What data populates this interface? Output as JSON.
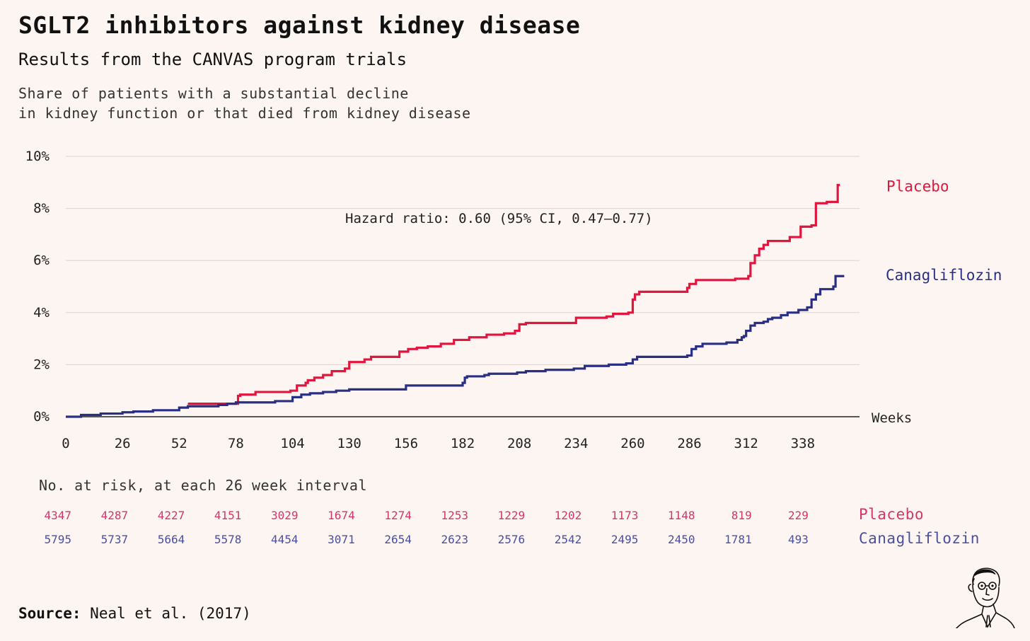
{
  "title": "SGLT2 inhibitors against kidney disease",
  "subtitle": "Results from the CANVAS program trials",
  "caption": [
    "Share of patients with a substantial decline",
    "in kidney function or that died from kidney disease"
  ],
  "colors": {
    "placebo": "#e0163f",
    "canagliflozin": "#2a2f86",
    "background": "#fdf5f1"
  },
  "chart_data": {
    "type": "line",
    "xlabel": "Weeks",
    "ylabel": "",
    "xlim": [
      0,
      364
    ],
    "ylim": [
      0,
      10
    ],
    "x_ticks": [
      0,
      26,
      52,
      78,
      104,
      130,
      156,
      182,
      208,
      234,
      260,
      286,
      312,
      338
    ],
    "y_ticks": [
      0,
      2,
      4,
      6,
      8,
      10
    ],
    "y_tick_labels": [
      "0%",
      "2%",
      "4%",
      "6%",
      "8%",
      "10%"
    ],
    "grid": true,
    "annotation": "Hazard ratio: 0.60 (95% CI, 0.47–0.77)",
    "series": [
      {
        "name": "Placebo",
        "color": "#e0163f",
        "step": true,
        "points": [
          [
            56,
            0.5
          ],
          [
            78,
            0.5
          ],
          [
            79,
            0.8
          ],
          [
            80,
            0.85
          ],
          [
            85,
            0.85
          ],
          [
            87,
            0.95
          ],
          [
            97,
            0.95
          ],
          [
            103,
            1.0
          ],
          [
            106,
            1.2
          ],
          [
            110,
            1.3
          ],
          [
            111,
            1.4
          ],
          [
            114,
            1.5
          ],
          [
            118,
            1.6
          ],
          [
            122,
            1.75
          ],
          [
            128,
            1.85
          ],
          [
            130,
            2.1
          ],
          [
            137,
            2.2
          ],
          [
            140,
            2.3
          ],
          [
            153,
            2.5
          ],
          [
            157,
            2.6
          ],
          [
            161,
            2.65
          ],
          [
            166,
            2.7
          ],
          [
            172,
            2.8
          ],
          [
            178,
            2.95
          ],
          [
            185,
            3.05
          ],
          [
            193,
            3.15
          ],
          [
            201,
            3.2
          ],
          [
            206,
            3.3
          ],
          [
            208,
            3.55
          ],
          [
            211,
            3.6
          ],
          [
            233,
            3.6
          ],
          [
            234,
            3.8
          ],
          [
            248,
            3.85
          ],
          [
            251,
            3.95
          ],
          [
            258,
            4.0
          ],
          [
            260,
            4.5
          ],
          [
            261,
            4.7
          ],
          [
            263,
            4.8
          ],
          [
            283,
            4.8
          ],
          [
            285,
            4.95
          ],
          [
            286,
            5.1
          ],
          [
            289,
            5.25
          ],
          [
            307,
            5.3
          ],
          [
            313,
            5.4
          ],
          [
            314,
            5.9
          ],
          [
            316,
            6.2
          ],
          [
            318,
            6.45
          ],
          [
            320,
            6.6
          ],
          [
            322,
            6.75
          ],
          [
            332,
            6.9
          ],
          [
            337,
            7.3
          ],
          [
            342,
            7.35
          ],
          [
            344,
            8.2
          ],
          [
            349,
            8.25
          ],
          [
            354,
            8.9
          ],
          [
            355,
            8.9
          ]
        ]
      },
      {
        "name": "Canagliflozin",
        "color": "#2a2f86",
        "step": true,
        "points": [
          [
            0,
            0.0
          ],
          [
            7,
            0.07
          ],
          [
            16,
            0.12
          ],
          [
            26,
            0.17
          ],
          [
            31,
            0.2
          ],
          [
            40,
            0.25
          ],
          [
            52,
            0.35
          ],
          [
            56,
            0.4
          ],
          [
            70,
            0.45
          ],
          [
            74,
            0.5
          ],
          [
            78,
            0.55
          ],
          [
            96,
            0.6
          ],
          [
            104,
            0.75
          ],
          [
            108,
            0.85
          ],
          [
            112,
            0.9
          ],
          [
            118,
            0.95
          ],
          [
            124,
            1.0
          ],
          [
            130,
            1.05
          ],
          [
            156,
            1.2
          ],
          [
            182,
            1.3
          ],
          [
            183,
            1.5
          ],
          [
            184,
            1.55
          ],
          [
            192,
            1.6
          ],
          [
            194,
            1.65
          ],
          [
            207,
            1.7
          ],
          [
            211,
            1.75
          ],
          [
            220,
            1.8
          ],
          [
            233,
            1.85
          ],
          [
            238,
            1.95
          ],
          [
            249,
            2.0
          ],
          [
            257,
            2.05
          ],
          [
            260,
            2.2
          ],
          [
            262,
            2.3
          ],
          [
            285,
            2.35
          ],
          [
            287,
            2.6
          ],
          [
            289,
            2.7
          ],
          [
            292,
            2.8
          ],
          [
            303,
            2.85
          ],
          [
            308,
            2.95
          ],
          [
            310,
            3.05
          ],
          [
            311,
            3.1
          ],
          [
            312,
            3.3
          ],
          [
            314,
            3.5
          ],
          [
            316,
            3.6
          ],
          [
            320,
            3.65
          ],
          [
            322,
            3.75
          ],
          [
            324,
            3.8
          ],
          [
            328,
            3.9
          ],
          [
            331,
            4.0
          ],
          [
            336,
            4.1
          ],
          [
            340,
            4.2
          ],
          [
            342,
            4.5
          ],
          [
            344,
            4.7
          ],
          [
            346,
            4.9
          ],
          [
            352,
            5.0
          ],
          [
            353,
            5.4
          ],
          [
            357,
            5.4
          ]
        ]
      }
    ],
    "series_labels": [
      "Placebo",
      "Canagliflozin"
    ]
  },
  "risk_table": {
    "title": "No. at risk, at each 26 week interval",
    "weeks": [
      0,
      26,
      52,
      78,
      104,
      130,
      156,
      182,
      208,
      234,
      260,
      286,
      312,
      338
    ],
    "rows": [
      {
        "name": "Placebo",
        "values": [
          "4347",
          "4287",
          "4227",
          "4151",
          "3029",
          "1674",
          "1274",
          "1253",
          "1229",
          "1202",
          "1173",
          "1148",
          "819",
          "229"
        ]
      },
      {
        "name": "Canagliflozin",
        "values": [
          "5795",
          "5737",
          "5664",
          "5578",
          "4454",
          "3071",
          "2654",
          "2623",
          "2576",
          "2542",
          "2495",
          "2450",
          "1781",
          "493"
        ]
      }
    ]
  },
  "source": {
    "label": "Source:",
    "text": "Neal et al. (2017)"
  },
  "logo": {
    "icon": "portrait-sketch-icon"
  }
}
